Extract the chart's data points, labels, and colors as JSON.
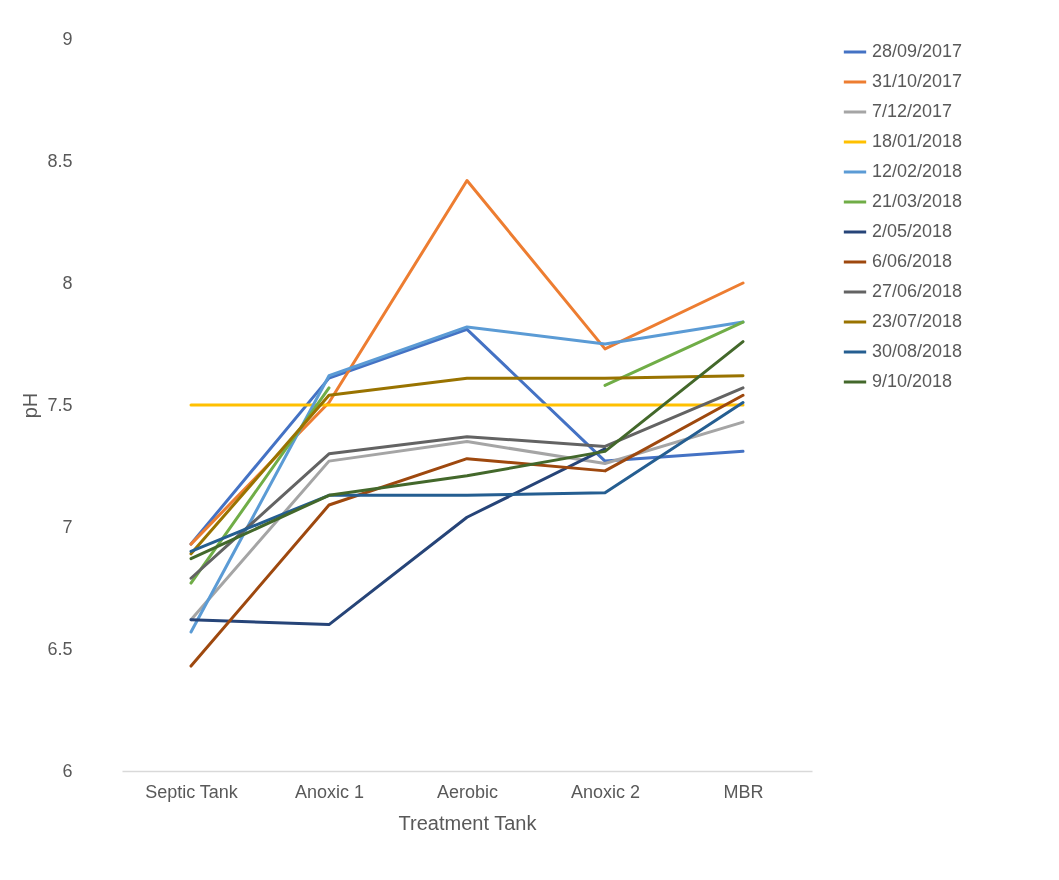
{
  "chart_data": {
    "type": "line",
    "xlabel": "Treatment Tank",
    "ylabel": "pH",
    "categories": [
      "Septic Tank",
      "Anoxic 1",
      "Aerobic",
      "Anoxic 2",
      "MBR"
    ],
    "ylim": [
      6,
      9
    ],
    "yticks": [
      6,
      6.5,
      7,
      7.5,
      8,
      8.5,
      9
    ],
    "grid": false,
    "legend": "right",
    "marker": "none",
    "line_style": "solid",
    "series": [
      {
        "name": "28/09/2017",
        "color": "#4472c4",
        "values": [
          6.93,
          7.61,
          7.81,
          7.27,
          7.31
        ]
      },
      {
        "name": "31/10/2017",
        "color": "#ed7d31",
        "values": [
          6.93,
          7.51,
          8.42,
          7.73,
          8.0
        ]
      },
      {
        "name": "7/12/2017",
        "color": "#a5a5a5",
        "values": [
          6.62,
          7.27,
          7.35,
          7.26,
          7.43
        ]
      },
      {
        "name": "18/01/2018",
        "color": "#ffc000",
        "values": [
          7.5,
          7.5,
          7.5,
          7.5,
          7.5
        ]
      },
      {
        "name": "12/02/2018",
        "color": "#5b9bd5",
        "values": [
          6.57,
          7.62,
          7.82,
          7.75,
          7.84
        ]
      },
      {
        "name": "21/03/2018",
        "color": "#70ad47",
        "values": [
          6.77,
          7.57,
          null,
          7.58,
          7.84
        ]
      },
      {
        "name": "2/05/2018",
        "color": "#264478",
        "values": [
          6.62,
          6.6,
          7.04,
          7.32,
          null
        ]
      },
      {
        "name": "6/06/2018",
        "color": "#9e480e",
        "values": [
          6.43,
          7.09,
          7.28,
          7.23,
          7.54
        ]
      },
      {
        "name": "27/06/2018",
        "color": "#636363",
        "values": [
          6.79,
          7.3,
          7.37,
          7.33,
          7.57
        ]
      },
      {
        "name": "23/07/2018",
        "color": "#997300",
        "values": [
          6.89,
          7.54,
          7.61,
          7.61,
          7.62
        ]
      },
      {
        "name": "30/08/2018",
        "color": "#255e91",
        "values": [
          6.9,
          7.13,
          7.13,
          7.14,
          7.51
        ]
      },
      {
        "name": "9/10/2018",
        "color": "#43682b",
        "values": [
          6.87,
          7.13,
          7.21,
          7.31,
          7.76
        ]
      }
    ]
  }
}
